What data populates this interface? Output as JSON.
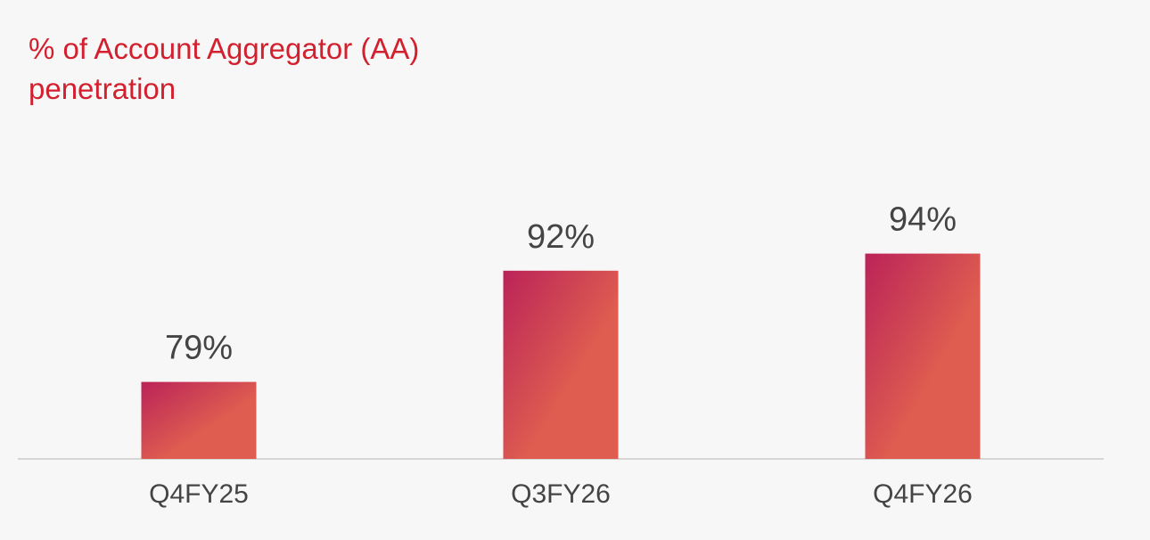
{
  "chart_data": {
    "type": "bar",
    "title": "% of Account Aggregator (AA) penetration",
    "categories": [
      "Q4FY25",
      "Q3FY26",
      "Q4FY26"
    ],
    "values": [
      79,
      92,
      94
    ],
    "value_labels": [
      "79%",
      "92%",
      "94%"
    ],
    "gradient": [
      "#bb2358",
      "#de5d50"
    ],
    "ylim": [
      70,
      100
    ]
  }
}
